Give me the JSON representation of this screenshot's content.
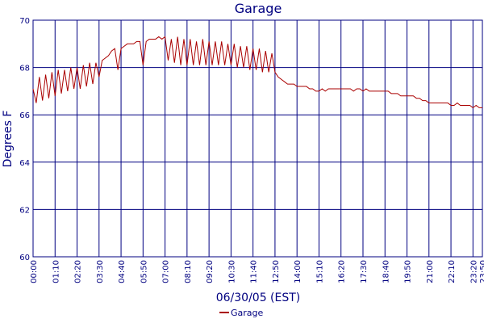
{
  "chart_data": {
    "type": "line",
    "title": "Garage",
    "ylabel": "Degrees F",
    "xlabel": "06/30/05 (EST)",
    "x": [
      0,
      10,
      20,
      30,
      40,
      50,
      60,
      70,
      80,
      90,
      100,
      110,
      120,
      130,
      140,
      150,
      160,
      170,
      180,
      190,
      200,
      210,
      220,
      230,
      240,
      250,
      260,
      270,
      280,
      290,
      300,
      310,
      320,
      330,
      340,
      350,
      360,
      370,
      380,
      390,
      400,
      410,
      420,
      430,
      440,
      450,
      460,
      470,
      480,
      490,
      500,
      510,
      520,
      530,
      540,
      550,
      560,
      570,
      580,
      590,
      600,
      610,
      620,
      630,
      640,
      650,
      660,
      670,
      680,
      690,
      700,
      710,
      720,
      730,
      740,
      750,
      760,
      770,
      780,
      790,
      800,
      810,
      820,
      830,
      840,
      850,
      860,
      870,
      880,
      890,
      900,
      910,
      920,
      930,
      940,
      950,
      960,
      970,
      980,
      990,
      1000,
      1010,
      1020,
      1030,
      1040,
      1050,
      1060,
      1070,
      1080,
      1090,
      1100,
      1110,
      1120,
      1130,
      1140,
      1150,
      1160,
      1170,
      1180,
      1190,
      1200,
      1210,
      1220,
      1230,
      1240,
      1250,
      1260,
      1270,
      1280,
      1290,
      1300,
      1310,
      1320,
      1330,
      1340,
      1350,
      1360,
      1370,
      1380,
      1390,
      1400,
      1410,
      1420,
      1430
    ],
    "series": [
      {
        "name": "Garage",
        "color": "#aa0000",
        "values": [
          67.1,
          66.5,
          67.6,
          66.6,
          67.7,
          66.7,
          67.8,
          66.8,
          67.9,
          66.9,
          67.9,
          67.0,
          68.0,
          67.1,
          68.0,
          67.1,
          68.1,
          67.2,
          68.2,
          67.3,
          68.2,
          67.6,
          68.3,
          68.4,
          68.5,
          68.7,
          68.8,
          67.9,
          68.8,
          68.9,
          69.0,
          69.0,
          69.0,
          69.1,
          69.1,
          68.1,
          69.1,
          69.2,
          69.2,
          69.2,
          69.3,
          69.2,
          69.3,
          68.3,
          69.2,
          68.2,
          69.3,
          68.1,
          69.2,
          68.1,
          69.2,
          68.1,
          69.1,
          68.1,
          69.2,
          68.1,
          69.1,
          68.1,
          69.1,
          68.1,
          69.1,
          68.1,
          69.0,
          68.1,
          69.0,
          68.0,
          68.9,
          68.0,
          68.9,
          67.9,
          68.8,
          67.9,
          68.8,
          67.8,
          68.7,
          67.8,
          68.6,
          67.8,
          67.6,
          67.5,
          67.4,
          67.3,
          67.3,
          67.3,
          67.2,
          67.2,
          67.2,
          67.2,
          67.1,
          67.1,
          67.0,
          67.0,
          67.1,
          67.0,
          67.1,
          67.1,
          67.1,
          67.1,
          67.1,
          67.1,
          67.1,
          67.1,
          67.0,
          67.1,
          67.1,
          67.0,
          67.1,
          67.0,
          67.0,
          67.0,
          67.0,
          67.0,
          67.0,
          67.0,
          66.9,
          66.9,
          66.9,
          66.8,
          66.8,
          66.8,
          66.8,
          66.8,
          66.7,
          66.7,
          66.6,
          66.6,
          66.5,
          66.5,
          66.5,
          66.5,
          66.5,
          66.5,
          66.5,
          66.4,
          66.4,
          66.5,
          66.4,
          66.4,
          66.4,
          66.4,
          66.3,
          66.4,
          66.3,
          66.3
        ]
      }
    ],
    "xlim": [
      0,
      1430
    ],
    "xticks": [
      {
        "value": 0,
        "label": "00:00"
      },
      {
        "value": 70,
        "label": "01:10"
      },
      {
        "value": 140,
        "label": "02:20"
      },
      {
        "value": 210,
        "label": "03:30"
      },
      {
        "value": 280,
        "label": "04:40"
      },
      {
        "value": 350,
        "label": "05:50"
      },
      {
        "value": 420,
        "label": "07:00"
      },
      {
        "value": 490,
        "label": "08:10"
      },
      {
        "value": 560,
        "label": "09:20"
      },
      {
        "value": 630,
        "label": "10:30"
      },
      {
        "value": 700,
        "label": "11:40"
      },
      {
        "value": 770,
        "label": "12:50"
      },
      {
        "value": 840,
        "label": "14:00"
      },
      {
        "value": 910,
        "label": "15:10"
      },
      {
        "value": 980,
        "label": "16:20"
      },
      {
        "value": 1050,
        "label": "17:30"
      },
      {
        "value": 1120,
        "label": "18:40"
      },
      {
        "value": 1190,
        "label": "19:50"
      },
      {
        "value": 1260,
        "label": "21:00"
      },
      {
        "value": 1330,
        "label": "22:10"
      },
      {
        "value": 1400,
        "label": "23:20"
      },
      {
        "value": 1430,
        "label": "23:50"
      }
    ],
    "ylim": [
      60,
      70
    ],
    "yticks": [
      60,
      62,
      64,
      66,
      68,
      70
    ],
    "grid": true,
    "legend": "bottom"
  }
}
